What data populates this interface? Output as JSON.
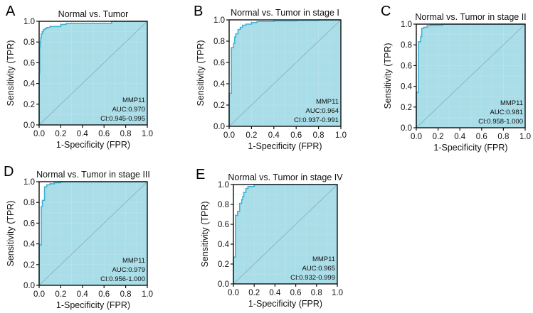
{
  "figure": {
    "colors": {
      "fill": "#a9dde8",
      "curve": "#3fb3d4",
      "grid": "#c2e6ee",
      "diagonal": "#8fb6c2",
      "axis": "#111111"
    }
  },
  "chart_data": [
    {
      "type": "line",
      "panel_label": "A",
      "title": "Normal vs. Tumor",
      "xlabel": "1-Specificity (FPR)",
      "ylabel": "Sensitivity (TPR)",
      "xlim": [
        0,
        1
      ],
      "ylim": [
        0,
        1
      ],
      "xticks": [
        "0.0",
        "0.2",
        "0.4",
        "0.6",
        "0.8",
        "1.0"
      ],
      "yticks": [
        "0.0",
        "0.2",
        "0.4",
        "0.6",
        "0.8",
        "1.0"
      ],
      "grid": true,
      "annotation": [
        "MMP11",
        "AUC:0.970",
        "CI:0.945-0.995"
      ],
      "series": [
        {
          "name": "MMP11",
          "x": [
            0,
            0,
            0.005,
            0.005,
            0.01,
            0.01,
            0.015,
            0.015,
            0.02,
            0.02,
            0.03,
            0.03,
            0.04,
            0.04,
            0.055,
            0.055,
            0.07,
            0.07,
            0.1,
            0.1,
            0.2,
            0.2,
            0.25,
            0.25,
            0.67,
            0.67,
            1.0
          ],
          "y": [
            0,
            0.5,
            0.5,
            0.75,
            0.75,
            0.8,
            0.8,
            0.84,
            0.84,
            0.88,
            0.88,
            0.9,
            0.9,
            0.92,
            0.92,
            0.93,
            0.93,
            0.94,
            0.94,
            0.95,
            0.95,
            0.97,
            0.97,
            0.98,
            0.98,
            1.0,
            1.0
          ]
        }
      ]
    },
    {
      "type": "line",
      "panel_label": "B",
      "title": "Normal vs. Tumor in stage I",
      "xlabel": "1-Specificity (FPR)",
      "ylabel": "Sensitivity (TPR)",
      "xlim": [
        0,
        1
      ],
      "ylim": [
        0,
        1
      ],
      "xticks": [
        "0.0",
        "0.2",
        "0.4",
        "0.6",
        "0.8",
        "1.0"
      ],
      "yticks": [
        "0.0",
        "0.2",
        "0.4",
        "0.6",
        "0.8",
        "1.0"
      ],
      "grid": true,
      "annotation": [
        "MMP11",
        "AUC:0.964",
        "CI:0.937-0.991"
      ],
      "series": [
        {
          "name": "MMP11",
          "x": [
            0,
            0,
            0.02,
            0.02,
            0.04,
            0.04,
            0.05,
            0.05,
            0.06,
            0.06,
            0.08,
            0.08,
            0.1,
            0.1,
            0.12,
            0.12,
            0.15,
            0.15,
            0.2,
            0.2,
            0.25,
            0.25,
            0.4,
            0.4,
            0.6,
            0.6,
            0.8,
            0.8,
            1.0
          ],
          "y": [
            0,
            0.31,
            0.31,
            0.74,
            0.74,
            0.78,
            0.78,
            0.84,
            0.84,
            0.87,
            0.87,
            0.91,
            0.91,
            0.93,
            0.93,
            0.95,
            0.95,
            0.96,
            0.96,
            0.975,
            0.975,
            0.985,
            0.985,
            0.99,
            0.99,
            0.995,
            0.995,
            1.0,
            1.0
          ]
        }
      ]
    },
    {
      "type": "line",
      "panel_label": "C",
      "title": "Normal vs. Tumor in stage II",
      "xlabel": "1-Specificity (FPR)",
      "ylabel": "Sensitivity (TPR)",
      "xlim": [
        0,
        1
      ],
      "ylim": [
        0,
        1
      ],
      "xticks": [
        "0.0",
        "0.2",
        "0.4",
        "0.6",
        "0.8",
        "1.0"
      ],
      "yticks": [
        "0.0",
        "0.2",
        "0.4",
        "0.6",
        "0.8",
        "1.0"
      ],
      "grid": true,
      "annotation": [
        "MMP11",
        "AUC:0.981",
        "CI:0.958-1.000"
      ],
      "series": [
        {
          "name": "MMP11",
          "x": [
            0,
            0,
            0.02,
            0.02,
            0.04,
            0.04,
            0.05,
            0.05,
            0.07,
            0.07,
            0.1,
            0.1,
            0.13,
            0.13,
            0.24,
            0.24,
            1.0
          ],
          "y": [
            0,
            0.34,
            0.34,
            0.83,
            0.83,
            0.88,
            0.88,
            0.96,
            0.96,
            0.97,
            0.97,
            0.985,
            0.985,
            0.99,
            0.99,
            1.0,
            1.0
          ]
        }
      ]
    },
    {
      "type": "line",
      "panel_label": "D",
      "title": "Normal vs. Tumor in stage III",
      "xlabel": "1-Specificity (FPR)",
      "ylabel": "Sensitivity (TPR)",
      "xlim": [
        0,
        1
      ],
      "ylim": [
        0,
        1
      ],
      "xticks": [
        "0.0",
        "0.2",
        "0.4",
        "0.6",
        "0.8",
        "1.0"
      ],
      "yticks": [
        "0.0",
        "0.2",
        "0.4",
        "0.6",
        "0.8",
        "1.0"
      ],
      "grid": true,
      "annotation": [
        "MMP11",
        "AUC:0.979",
        "CI:0.956-1.000"
      ],
      "series": [
        {
          "name": "MMP11",
          "x": [
            0,
            0,
            0.02,
            0.02,
            0.03,
            0.03,
            0.05,
            0.05,
            0.07,
            0.07,
            0.1,
            0.1,
            0.14,
            0.14,
            0.2,
            0.2,
            1.0
          ],
          "y": [
            0,
            0.39,
            0.39,
            0.76,
            0.76,
            0.82,
            0.82,
            0.95,
            0.95,
            0.97,
            0.97,
            0.98,
            0.98,
            0.99,
            0.99,
            1.0,
            1.0
          ]
        }
      ]
    },
    {
      "type": "line",
      "panel_label": "E",
      "title": "Normal vs. Tumor in stage IV",
      "xlabel": "1-Specificity (FPR)",
      "ylabel": "Sensitivity (TPR)",
      "xlim": [
        0,
        1
      ],
      "ylim": [
        0,
        1
      ],
      "xticks": [
        "0.0",
        "0.2",
        "0.4",
        "0.6",
        "0.8",
        "1.0"
      ],
      "yticks": [
        "0.0",
        "0.2",
        "0.4",
        "0.6",
        "0.8",
        "1.0"
      ],
      "grid": true,
      "annotation": [
        "MMP11",
        "AUC:0.965",
        "CI:0.932-0.999"
      ],
      "series": [
        {
          "name": "MMP11",
          "x": [
            0,
            0,
            0.02,
            0.02,
            0.04,
            0.04,
            0.06,
            0.06,
            0.08,
            0.08,
            0.09,
            0.09,
            0.1,
            0.1,
            0.12,
            0.12,
            0.14,
            0.14,
            0.2,
            0.2,
            1.0
          ],
          "y": [
            0,
            0.27,
            0.27,
            0.69,
            0.69,
            0.73,
            0.73,
            0.81,
            0.81,
            0.85,
            0.85,
            0.88,
            0.88,
            0.92,
            0.92,
            0.96,
            0.96,
            0.98,
            0.98,
            1.0,
            1.0
          ]
        }
      ]
    }
  ]
}
